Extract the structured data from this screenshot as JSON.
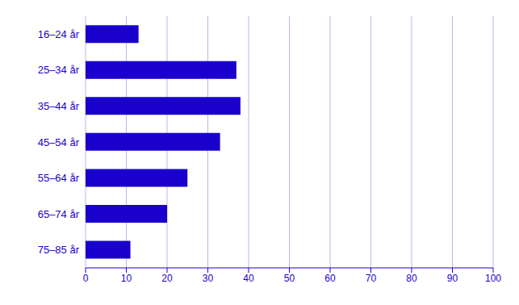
{
  "chart_data": {
    "type": "bar",
    "orientation": "horizontal",
    "categories": [
      "16–24 år",
      "25–34 år",
      "35–44 år",
      "45–54 år",
      "55–64 år",
      "65–74 år",
      "75–85 år"
    ],
    "values": [
      13,
      37,
      38,
      33,
      25,
      20,
      11
    ],
    "color": "#1a00cc",
    "xlim": [
      0,
      100
    ],
    "xticks": [
      0,
      10,
      20,
      30,
      40,
      50,
      60,
      70,
      80,
      90,
      100
    ],
    "grid": true
  }
}
